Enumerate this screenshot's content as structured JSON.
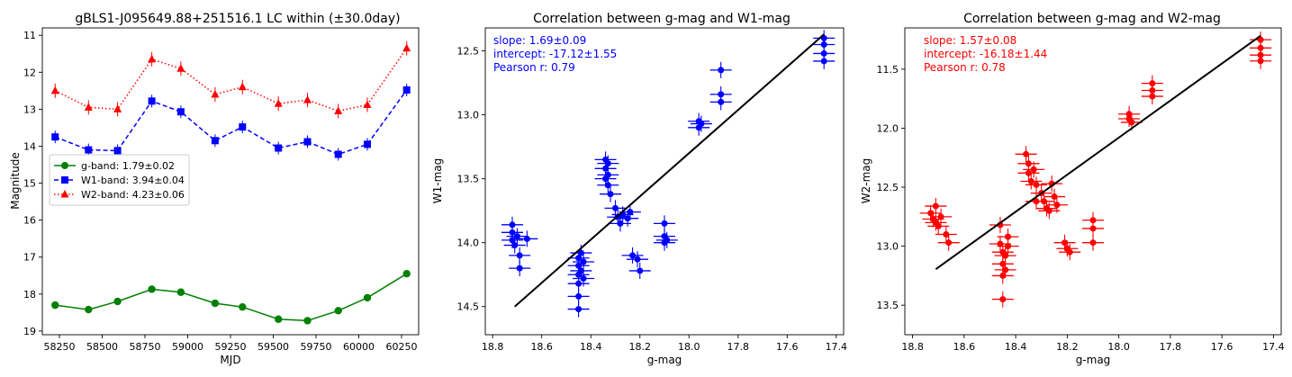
{
  "chart_data": [
    {
      "type": "line",
      "title": "gBLS1-J095649.88+251516.1 LC within (±30.0day)",
      "xlabel": "MJD",
      "ylabel": "Magnitude",
      "xlim": [
        58150,
        60350
      ],
      "ylim": [
        19.1,
        10.8
      ],
      "y_inverted": true,
      "xticks": [
        58250,
        58500,
        58750,
        59000,
        59250,
        59500,
        59750,
        60000,
        60250
      ],
      "yticks": [
        11,
        12,
        13,
        14,
        15,
        16,
        17,
        18,
        19
      ],
      "legend_position": "middle-left",
      "series": [
        {
          "name": "g-band",
          "legend_label": "g-band: 1.79±0.02",
          "color": "#008000",
          "linestyle": "solid",
          "marker": "circle",
          "x": [
            58225,
            58420,
            58590,
            58790,
            58960,
            59160,
            59320,
            59530,
            59700,
            59880,
            60050,
            60280
          ],
          "y": [
            18.3,
            18.42,
            18.2,
            17.87,
            17.95,
            18.25,
            18.35,
            18.68,
            18.72,
            18.45,
            18.1,
            17.45
          ]
        },
        {
          "name": "W1-band",
          "legend_label": "W1-band: 3.94±0.04",
          "color": "#0000ff",
          "linestyle": "dashed",
          "marker": "square",
          "x": [
            58225,
            58420,
            58590,
            58790,
            58960,
            59160,
            59320,
            59530,
            59700,
            59880,
            60050,
            60280
          ],
          "y": [
            13.75,
            14.1,
            14.12,
            12.78,
            13.07,
            13.85,
            13.48,
            14.05,
            13.88,
            14.22,
            13.95,
            12.48
          ]
        },
        {
          "name": "W2-band",
          "legend_label": "W2-band: 4.23±0.06",
          "color": "#ff0000",
          "linestyle": "dotted",
          "marker": "triangle",
          "x": [
            58225,
            58420,
            58590,
            58790,
            58960,
            59160,
            59320,
            59530,
            59700,
            59880,
            60050,
            60280
          ],
          "y": [
            12.5,
            12.95,
            13.0,
            11.65,
            11.9,
            12.6,
            12.4,
            12.85,
            12.75,
            13.05,
            12.88,
            11.35
          ]
        }
      ]
    },
    {
      "type": "scatter",
      "title": "Correlation between g-mag and W1-mag",
      "xlabel": "g-mag",
      "ylabel": "W1-mag",
      "xlim": [
        18.83,
        17.37
      ],
      "ylim": [
        14.72,
        12.32
      ],
      "xticks": [
        "18.8",
        "18.6",
        "18.4",
        "18.2",
        "18.0",
        "17.8",
        "17.6",
        "17.4"
      ],
      "yticks": [
        "12.5",
        "13.0",
        "13.5",
        "14.0",
        "14.5"
      ],
      "color": "#0000ff",
      "annotations": [
        "slope: 1.69±0.09",
        "intercept: -17.12±1.55",
        "Pearson r: 0.79"
      ],
      "fit": {
        "slope": 1.69,
        "intercept": -17.12,
        "x_range": [
          18.71,
          17.45
        ]
      },
      "points": [
        [
          18.72,
          13.86
        ],
        [
          18.72,
          13.92
        ],
        [
          18.72,
          13.98
        ],
        [
          18.71,
          14.02
        ],
        [
          18.7,
          13.95
        ],
        [
          18.69,
          14.1
        ],
        [
          18.69,
          14.2
        ],
        [
          18.66,
          13.97
        ],
        [
          18.45,
          14.12
        ],
        [
          18.45,
          14.18
        ],
        [
          18.45,
          14.25
        ],
        [
          18.45,
          14.32
        ],
        [
          18.45,
          14.42
        ],
        [
          18.45,
          14.52
        ],
        [
          18.44,
          14.22
        ],
        [
          18.44,
          14.08
        ],
        [
          18.43,
          14.15
        ],
        [
          18.43,
          14.28
        ],
        [
          18.34,
          13.35
        ],
        [
          18.34,
          13.42
        ],
        [
          18.34,
          13.5
        ],
        [
          18.33,
          13.38
        ],
        [
          18.33,
          13.47
        ],
        [
          18.33,
          13.55
        ],
        [
          18.32,
          13.62
        ],
        [
          18.3,
          13.73
        ],
        [
          18.29,
          13.8
        ],
        [
          18.28,
          13.85
        ],
        [
          18.27,
          13.78
        ],
        [
          18.25,
          13.81
        ],
        [
          18.24,
          13.76
        ],
        [
          18.23,
          14.1
        ],
        [
          18.21,
          14.13
        ],
        [
          18.2,
          14.22
        ],
        [
          18.1,
          13.85
        ],
        [
          18.1,
          13.95
        ],
        [
          18.1,
          14.0
        ],
        [
          18.09,
          13.98
        ],
        [
          17.96,
          13.05
        ],
        [
          17.96,
          13.1
        ],
        [
          17.95,
          13.07
        ],
        [
          17.87,
          12.65
        ],
        [
          17.87,
          12.84
        ],
        [
          17.87,
          12.9
        ],
        [
          17.45,
          12.4
        ],
        [
          17.45,
          12.45
        ],
        [
          17.45,
          12.52
        ],
        [
          17.45,
          12.58
        ]
      ]
    },
    {
      "type": "scatter",
      "title": "Correlation between g-mag and W2-mag",
      "xlabel": "g-mag",
      "ylabel": "W2-mag",
      "xlim": [
        18.83,
        17.37
      ],
      "ylim": [
        13.75,
        11.15
      ],
      "xticks": [
        "18.8",
        "18.6",
        "18.4",
        "18.2",
        "18.0",
        "17.8",
        "17.6",
        "17.4"
      ],
      "yticks": [
        "11.5",
        "12.0",
        "12.5",
        "13.0",
        "13.5"
      ],
      "color": "#ff0000",
      "annotations": [
        "slope: 1.57±0.08",
        "intercept: -16.18±1.44",
        "Pearson r: 0.78"
      ],
      "fit": {
        "slope": 1.57,
        "intercept": -16.18,
        "x_range": [
          18.71,
          17.45
        ]
      },
      "points": [
        [
          18.73,
          12.72
        ],
        [
          18.72,
          12.77
        ],
        [
          18.71,
          12.66
        ],
        [
          18.71,
          12.8
        ],
        [
          18.7,
          12.83
        ],
        [
          18.69,
          12.75
        ],
        [
          18.67,
          12.9
        ],
        [
          18.66,
          12.97
        ],
        [
          18.46,
          12.82
        ],
        [
          18.46,
          12.98
        ],
        [
          18.45,
          13.05
        ],
        [
          18.45,
          13.15
        ],
        [
          18.45,
          13.25
        ],
        [
          18.45,
          13.45
        ],
        [
          18.44,
          13.08
        ],
        [
          18.44,
          13.2
        ],
        [
          18.43,
          12.92
        ],
        [
          18.43,
          13.0
        ],
        [
          18.36,
          12.22
        ],
        [
          18.35,
          12.3
        ],
        [
          18.35,
          12.38
        ],
        [
          18.34,
          12.45
        ],
        [
          18.33,
          12.35
        ],
        [
          18.32,
          12.48
        ],
        [
          18.32,
          12.62
        ],
        [
          18.3,
          12.55
        ],
        [
          18.29,
          12.62
        ],
        [
          18.28,
          12.68
        ],
        [
          18.27,
          12.7
        ],
        [
          18.26,
          12.47
        ],
        [
          18.25,
          12.58
        ],
        [
          18.24,
          12.65
        ],
        [
          18.21,
          12.97
        ],
        [
          18.2,
          13.02
        ],
        [
          18.19,
          13.05
        ],
        [
          18.1,
          12.78
        ],
        [
          18.1,
          12.85
        ],
        [
          18.1,
          12.97
        ],
        [
          17.96,
          11.88
        ],
        [
          17.96,
          11.92
        ],
        [
          17.95,
          11.95
        ],
        [
          17.87,
          11.62
        ],
        [
          17.87,
          11.68
        ],
        [
          17.87,
          11.73
        ],
        [
          17.45,
          11.25
        ],
        [
          17.45,
          11.32
        ],
        [
          17.45,
          11.38
        ],
        [
          17.45,
          11.43
        ]
      ]
    }
  ]
}
